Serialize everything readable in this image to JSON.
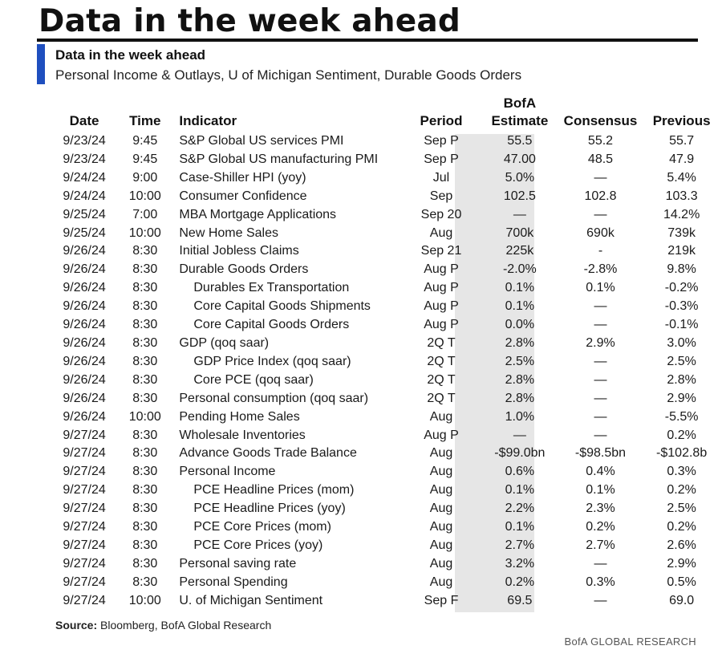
{
  "header": {
    "title": "Data in the week ahead",
    "subtitle": "Data in the week ahead",
    "description": "Personal Income & Outlays, U of Michigan Sentiment, Durable Goods Orders"
  },
  "table": {
    "columns": {
      "date": "Date",
      "time": "Time",
      "indicator": "Indicator",
      "period": "Period",
      "bofa_line1": "BofA",
      "bofa_line2": "Estimate",
      "consensus": "Consensus",
      "previous": "Previous"
    },
    "rows": [
      {
        "date": "9/23/24",
        "time": "9:45",
        "indicator": "S&P Global US services PMI",
        "indent": false,
        "period": "Sep P",
        "bofa": "55.5",
        "consensus": "55.2",
        "previous": "55.7"
      },
      {
        "date": "9/23/24",
        "time": "9:45",
        "indicator": "S&P Global US manufacturing PMI",
        "indent": false,
        "period": "Sep P",
        "bofa": "47.00",
        "consensus": "48.5",
        "previous": "47.9"
      },
      {
        "date": "9/24/24",
        "time": "9:00",
        "indicator": "Case-Shiller HPI (yoy)",
        "indent": false,
        "period": "Jul",
        "bofa": "5.0%",
        "consensus": "—",
        "previous": "5.4%"
      },
      {
        "date": "9/24/24",
        "time": "10:00",
        "indicator": "Consumer Confidence",
        "indent": false,
        "period": "Sep",
        "bofa": "102.5",
        "consensus": "102.8",
        "previous": "103.3"
      },
      {
        "date": "9/25/24",
        "time": "7:00",
        "indicator": "MBA Mortgage Applications",
        "indent": false,
        "period": "Sep 20",
        "bofa": "—",
        "consensus": "—",
        "previous": "14.2%"
      },
      {
        "date": "9/25/24",
        "time": "10:00",
        "indicator": "New Home Sales",
        "indent": false,
        "period": "Aug",
        "bofa": "700k",
        "consensus": "690k",
        "previous": "739k"
      },
      {
        "date": "9/26/24",
        "time": "8:30",
        "indicator": "Initial Jobless Claims",
        "indent": false,
        "period": "Sep 21",
        "bofa": "225k",
        "consensus": "-",
        "previous": "219k"
      },
      {
        "date": "9/26/24",
        "time": "8:30",
        "indicator": "Durable Goods Orders",
        "indent": false,
        "period": "Aug P",
        "bofa": "-2.0%",
        "consensus": "-2.8%",
        "previous": "9.8%"
      },
      {
        "date": "9/26/24",
        "time": "8:30",
        "indicator": "Durables Ex Transportation",
        "indent": true,
        "period": "Aug P",
        "bofa": "0.1%",
        "consensus": "0.1%",
        "previous": "-0.2%"
      },
      {
        "date": "9/26/24",
        "time": "8:30",
        "indicator": "Core Capital Goods Shipments",
        "indent": true,
        "period": "Aug P",
        "bofa": "0.1%",
        "consensus": "—",
        "previous": "-0.3%"
      },
      {
        "date": "9/26/24",
        "time": "8:30",
        "indicator": "Core Capital Goods Orders",
        "indent": true,
        "period": "Aug P",
        "bofa": "0.0%",
        "consensus": "—",
        "previous": "-0.1%"
      },
      {
        "date": "9/26/24",
        "time": "8:30",
        "indicator": "GDP (qoq saar)",
        "indent": false,
        "period": "2Q T",
        "bofa": "2.8%",
        "consensus": "2.9%",
        "previous": "3.0%"
      },
      {
        "date": "9/26/24",
        "time": "8:30",
        "indicator": "GDP Price Index (qoq saar)",
        "indent": true,
        "period": "2Q T",
        "bofa": "2.5%",
        "consensus": "—",
        "previous": "2.5%"
      },
      {
        "date": "9/26/24",
        "time": "8:30",
        "indicator": "Core PCE (qoq saar)",
        "indent": true,
        "period": "2Q T",
        "bofa": "2.8%",
        "consensus": "—",
        "previous": "2.8%"
      },
      {
        "date": "9/26/24",
        "time": "8:30",
        "indicator": "Personal consumption (qoq saar)",
        "indent": false,
        "period": "2Q T",
        "bofa": "2.8%",
        "consensus": "—",
        "previous": "2.9%"
      },
      {
        "date": "9/26/24",
        "time": "10:00",
        "indicator": "Pending Home Sales",
        "indent": false,
        "period": "Aug",
        "bofa": "1.0%",
        "consensus": "—",
        "previous": "-5.5%"
      },
      {
        "date": "9/27/24",
        "time": "8:30",
        "indicator": "Wholesale Inventories",
        "indent": false,
        "period": "Aug P",
        "bofa": "—",
        "consensus": "—",
        "previous": "0.2%"
      },
      {
        "date": "9/27/24",
        "time": "8:30",
        "indicator": "Advance Goods Trade Balance",
        "indent": false,
        "period": "Aug",
        "bofa": "-$99.0bn",
        "consensus": "-$98.5bn",
        "previous": "-$102.8b"
      },
      {
        "date": "9/27/24",
        "time": "8:30",
        "indicator": "Personal Income",
        "indent": false,
        "period": "Aug",
        "bofa": "0.6%",
        "consensus": "0.4%",
        "previous": "0.3%"
      },
      {
        "date": "9/27/24",
        "time": "8:30",
        "indicator": "PCE Headline Prices (mom)",
        "indent": true,
        "period": "Aug",
        "bofa": "0.1%",
        "consensus": "0.1%",
        "previous": "0.2%"
      },
      {
        "date": "9/27/24",
        "time": "8:30",
        "indicator": "PCE Headline Prices (yoy)",
        "indent": true,
        "period": "Aug",
        "bofa": "2.2%",
        "consensus": "2.3%",
        "previous": "2.5%"
      },
      {
        "date": "9/27/24",
        "time": "8:30",
        "indicator": "PCE Core Prices (mom)",
        "indent": true,
        "period": "Aug",
        "bofa": "0.1%",
        "consensus": "0.2%",
        "previous": "0.2%"
      },
      {
        "date": "9/27/24",
        "time": "8:30",
        "indicator": "PCE Core Prices (yoy)",
        "indent": true,
        "period": "Aug",
        "bofa": "2.7%",
        "consensus": "2.7%",
        "previous": "2.6%"
      },
      {
        "date": "9/27/24",
        "time": "8:30",
        "indicator": "Personal saving rate",
        "indent": false,
        "period": "Aug",
        "bofa": "3.2%",
        "consensus": "—",
        "previous": "2.9%"
      },
      {
        "date": "9/27/24",
        "time": "8:30",
        "indicator": "Personal Spending",
        "indent": false,
        "period": "Aug",
        "bofa": "0.2%",
        "consensus": "0.3%",
        "previous": "0.5%"
      },
      {
        "date": "9/27/24",
        "time": "10:00",
        "indicator": "U. of Michigan Sentiment",
        "indent": false,
        "period": "Sep F",
        "bofa": "69.5",
        "consensus": "—",
        "previous": "69.0"
      }
    ]
  },
  "footer": {
    "source_label": "Source:",
    "source_text": " Bloomberg, BofA Global Research",
    "brand": "BofA GLOBAL RESEARCH"
  },
  "colors": {
    "accent": "#1f4fbf",
    "estimate_column_bg": "#e6e6e6"
  }
}
